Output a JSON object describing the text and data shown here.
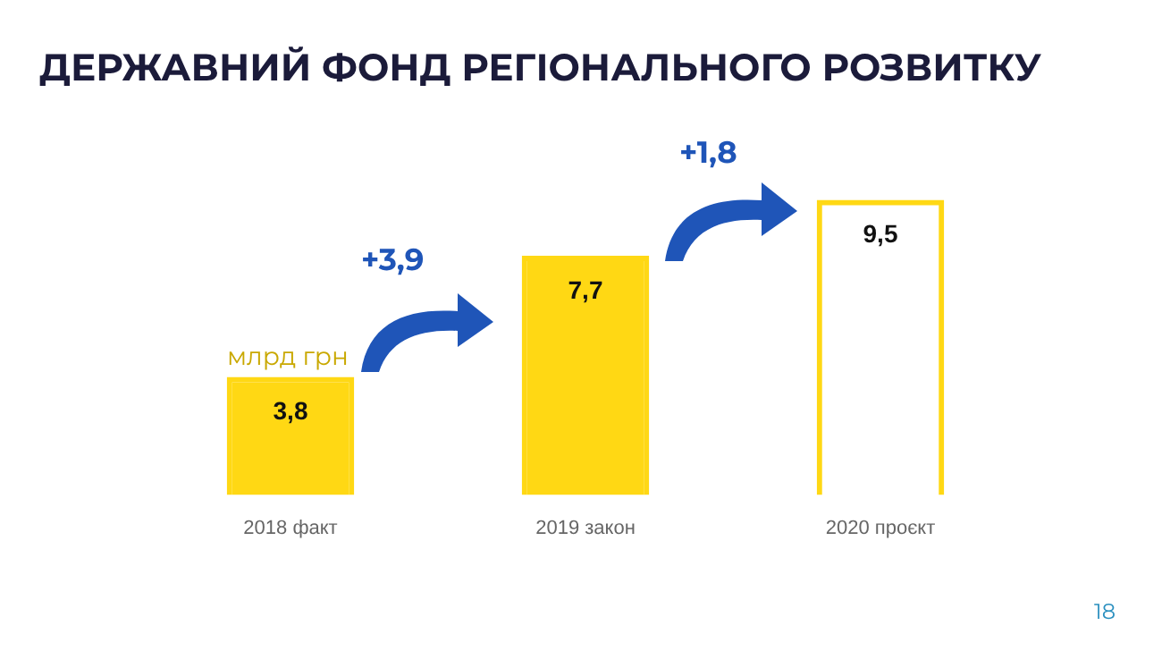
{
  "chart_data": {
    "type": "bar",
    "title": "ДЕРЖАВНИЙ ФОНД РЕГІОНАЛЬНОГО РОЗВИТКУ",
    "categories": [
      "2018 факт",
      "2019 закон",
      "2020 проєкт"
    ],
    "values": [
      3.8,
      7.7,
      9.5
    ],
    "value_labels": [
      "3,8",
      "7,7",
      "9,5"
    ],
    "colors": [
      "#ffd814",
      "#ffd814",
      "#ffd814"
    ],
    "annotations": [
      "млрд грн",
      "+3,9",
      "+1,8",
      "18"
    ]
  }
}
